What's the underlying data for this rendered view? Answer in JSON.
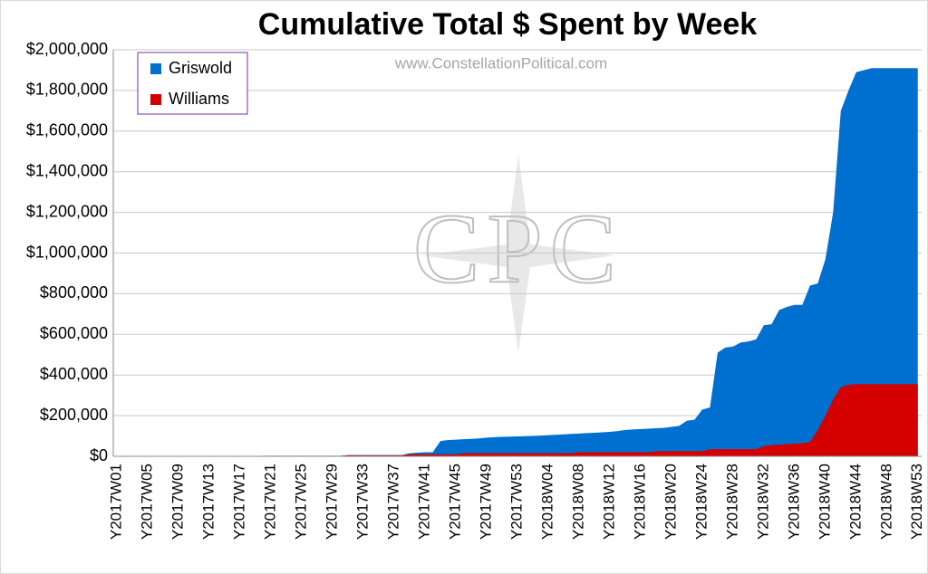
{
  "chart_data": {
    "type": "area",
    "title": "Cumulative Total $ Spent by Week",
    "annotations": [
      "www.ConstellationPolitical.com",
      "CPC"
    ],
    "categories": [
      "Y2017W01",
      null,
      null,
      null,
      "Y2017W05",
      null,
      null,
      null,
      "Y2017W09",
      null,
      null,
      null,
      "Y2017W13",
      null,
      null,
      null,
      "Y2017W17",
      null,
      null,
      null,
      "Y2017W21",
      null,
      null,
      null,
      "Y2017W25",
      null,
      null,
      null,
      "Y2017W29",
      null,
      null,
      null,
      "Y2017W33",
      null,
      null,
      null,
      "Y2017W37",
      null,
      null,
      null,
      "Y2017W41",
      null,
      null,
      null,
      "Y2017W45",
      null,
      null,
      null,
      "Y2017W49",
      null,
      null,
      null,
      "Y2017W53",
      null,
      null,
      null,
      "Y2018W04",
      null,
      null,
      null,
      "Y2018W08",
      null,
      null,
      null,
      "Y2018W12",
      null,
      null,
      null,
      "Y2018W16",
      null,
      null,
      null,
      "Y2018W20",
      null,
      null,
      null,
      "Y2018W24",
      null,
      null,
      null,
      "Y2018W28",
      null,
      null,
      null,
      "Y2018W32",
      null,
      null,
      null,
      "Y2018W36",
      null,
      null,
      null,
      "Y2018W40",
      null,
      null,
      null,
      "Y2018W44",
      null,
      null,
      null,
      "Y2018W48",
      null,
      null,
      null,
      "Y2018W53"
    ],
    "series": [
      {
        "name": "Griswold",
        "color": "#0070d0",
        "values": [
          0,
          0,
          0,
          0,
          0,
          0,
          0,
          0,
          0,
          0,
          0,
          0,
          0,
          0,
          0,
          0,
          0,
          0,
          0,
          3000,
          3000,
          3000,
          3000,
          3000,
          3000,
          3000,
          3000,
          3000,
          3000,
          3000,
          6000,
          6000,
          6000,
          6000,
          6000,
          6000,
          6000,
          6000,
          15000,
          18000,
          20000,
          20000,
          75000,
          80000,
          82000,
          84000,
          86000,
          88000,
          92000,
          94000,
          96000,
          97000,
          98000,
          99000,
          100000,
          102000,
          104000,
          106000,
          108000,
          110000,
          112000,
          114000,
          116000,
          118000,
          120000,
          124000,
          130000,
          132000,
          134000,
          136000,
          138000,
          140000,
          145000,
          150000,
          175000,
          180000,
          230000,
          240000,
          510000,
          535000,
          540000,
          560000,
          565000,
          575000,
          645000,
          650000,
          720000,
          735000,
          745000,
          745000,
          840000,
          850000,
          970000,
          1200000,
          1700000,
          1800000,
          1890000,
          1900000,
          1910000,
          1910000,
          1910000,
          1910000,
          1910000,
          1910000,
          1910000
        ]
      },
      {
        "name": "Williams",
        "color": "#d40000",
        "values": [
          0,
          0,
          0,
          0,
          0,
          0,
          0,
          0,
          0,
          0,
          0,
          0,
          0,
          0,
          0,
          0,
          0,
          0,
          0,
          0,
          2000,
          2000,
          2000,
          2000,
          2000,
          2000,
          2000,
          2000,
          2000,
          2000,
          5000,
          5000,
          5000,
          5000,
          5000,
          5000,
          5000,
          5000,
          10000,
          10000,
          10000,
          10000,
          10000,
          10000,
          10000,
          15000,
          15000,
          15000,
          15000,
          15000,
          15000,
          15000,
          15000,
          15000,
          15000,
          15000,
          15000,
          15000,
          15000,
          15000,
          20000,
          20000,
          20000,
          20000,
          20000,
          20000,
          20000,
          20000,
          20000,
          20000,
          25000,
          25000,
          25000,
          25000,
          25000,
          25000,
          25000,
          35000,
          35000,
          35000,
          35000,
          35000,
          35000,
          35000,
          50000,
          55000,
          57000,
          60000,
          62000,
          65000,
          70000,
          130000,
          200000,
          280000,
          340000,
          352000,
          355000,
          355000,
          355000,
          355000,
          355000,
          355000,
          355000,
          355000,
          355000
        ]
      }
    ],
    "ylim": [
      0,
      2000000
    ],
    "yticks": [
      {
        "value": 0,
        "label": "$0"
      },
      {
        "value": 200000,
        "label": "$200,000"
      },
      {
        "value": 400000,
        "label": "$400,000"
      },
      {
        "value": 600000,
        "label": "$600,000"
      },
      {
        "value": 800000,
        "label": "$800,000"
      },
      {
        "value": 1000000,
        "label": "$1,000,000"
      },
      {
        "value": 1200000,
        "label": "$1,200,000"
      },
      {
        "value": 1400000,
        "label": "$1,400,000"
      },
      {
        "value": 1600000,
        "label": "$1,600,000"
      },
      {
        "value": 1800000,
        "label": "$1,800,000"
      },
      {
        "value": 2000000,
        "label": "$2,000,000"
      }
    ],
    "grid": true,
    "legend": "top-left"
  }
}
